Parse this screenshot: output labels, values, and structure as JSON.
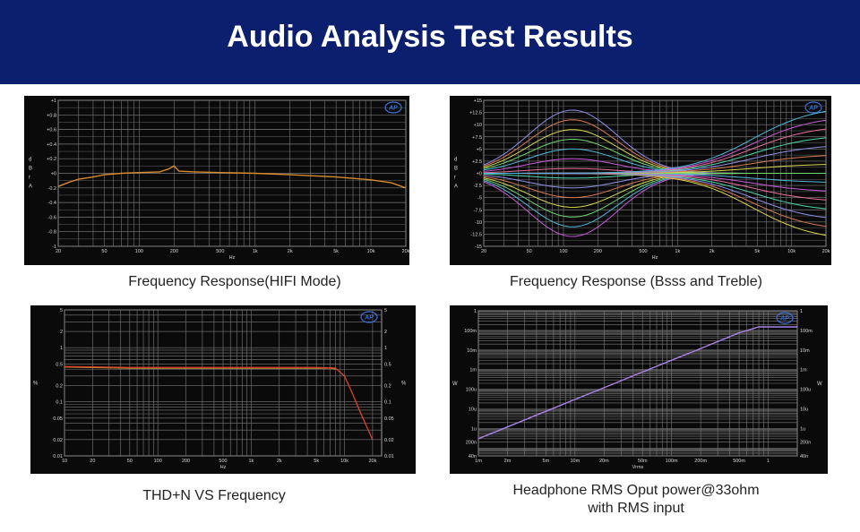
{
  "page": {
    "title": "Audio Analysis Test Results"
  },
  "colors": {
    "banner": "#0c1f6e",
    "panel_bg": "#0a0a0a",
    "grid": "#7a7a7a",
    "axis_text": "#d8d8d8",
    "logo": "#3b6fd8"
  },
  "logo_text": "AP",
  "captions": {
    "c1": "Frequency Response(HIFI Mode)",
    "c2": "Frequency Response (Bsss and Treble)",
    "c3": "THD+N VS Frequency",
    "c4_line1": "Headphone RMS Oput power@33ohm",
    "c4_line2": "with RMS input"
  },
  "chart_data": [
    {
      "id": "freq-hifi",
      "type": "line",
      "x_scale": "log",
      "xlim": [
        20,
        20000
      ],
      "ylim": [
        -1,
        1
      ],
      "xlabel": "Hz",
      "ylabel": "dBrA",
      "y_ticks": [
        "+1",
        "+0.8",
        "+0.6",
        "+0.4",
        "+0.2",
        "+0",
        "-0.2",
        "-0.4",
        "-0.6",
        "-0.8",
        "-1"
      ],
      "x_ticks": [
        "20",
        "50",
        "100",
        "200",
        "500",
        "1k",
        "2k",
        "5k",
        "10k",
        "20k"
      ],
      "series": [
        {
          "color": "#d98a2b",
          "x": [
            20,
            25,
            30,
            40,
            50,
            70,
            100,
            150,
            180,
            200,
            220,
            300,
            500,
            1000,
            2000,
            5000,
            10000,
            15000,
            20000
          ],
          "y": [
            -0.18,
            -0.12,
            -0.08,
            -0.05,
            -0.02,
            0.0,
            0.01,
            0.02,
            0.06,
            0.1,
            0.03,
            0.02,
            0.01,
            0.0,
            -0.02,
            -0.05,
            -0.09,
            -0.13,
            -0.2
          ]
        }
      ]
    },
    {
      "id": "freq-bass-treble",
      "type": "line",
      "x_scale": "log",
      "xlim": [
        20,
        20000
      ],
      "ylim": [
        -15,
        15
      ],
      "xlabel": "Hz",
      "ylabel": "dBrA",
      "y_ticks": [
        "+15",
        "+12.5",
        "+10",
        "+7.5",
        "+5",
        "+2.5",
        "+0",
        "-2.5",
        "-5",
        "-7.5",
        "-10",
        "-12.5",
        "-15"
      ],
      "x_ticks": [
        "20",
        "50",
        "100",
        "200",
        "500",
        "1k",
        "2k",
        "5k",
        "10k",
        "20k"
      ],
      "bass_gains": [
        -13,
        -11,
        -9,
        -7,
        -5,
        -3,
        -1,
        1,
        3,
        5,
        7,
        9,
        11,
        13
      ],
      "treble_gains": [
        -14,
        -12,
        -10,
        -8,
        -6,
        -4,
        -2,
        0,
        2,
        4,
        6,
        8,
        10,
        12,
        14
      ],
      "palette": [
        "#c75ad8",
        "#4fb8d8",
        "#6fd86f",
        "#d8d84f",
        "#d87a4f",
        "#8f8fe8",
        "#4fd8b0",
        "#e86f9c"
      ]
    },
    {
      "id": "thd-freq",
      "type": "line",
      "x_scale": "log",
      "y_scale": "log",
      "xlim": [
        10,
        25000
      ],
      "ylim": [
        0.01,
        5
      ],
      "xlabel": "Hz",
      "ylabel": "%",
      "y_ticks": [
        "5",
        "2",
        "1",
        "0.5",
        "0.2",
        "0.1",
        "0.05",
        "0.02",
        "0.01"
      ],
      "y_tick_values": [
        5,
        2,
        1,
        0.5,
        0.2,
        0.1,
        0.05,
        0.02,
        0.01
      ],
      "x_ticks": [
        "10",
        "20",
        "50",
        "100",
        "200",
        "500",
        "1k",
        "2k",
        "5k",
        "10k",
        "20k"
      ],
      "x_tick_values": [
        10,
        20,
        50,
        100,
        200,
        500,
        1000,
        2000,
        5000,
        10000,
        20000
      ],
      "series": [
        {
          "color": "#c8a640",
          "x": [
            10,
            20,
            50,
            100,
            200,
            500,
            1000,
            2000,
            5000,
            7000,
            8000
          ],
          "y": [
            0.44,
            0.43,
            0.42,
            0.42,
            0.42,
            0.42,
            0.42,
            0.42,
            0.42,
            0.42,
            0.4
          ]
        },
        {
          "color": "#d0402a",
          "x": [
            10,
            20,
            50,
            100,
            200,
            500,
            1000,
            2000,
            5000,
            8000,
            10000,
            12000,
            15000,
            20000
          ],
          "y": [
            0.45,
            0.44,
            0.43,
            0.43,
            0.43,
            0.43,
            0.43,
            0.43,
            0.43,
            0.42,
            0.3,
            0.15,
            0.06,
            0.02
          ]
        }
      ]
    },
    {
      "id": "power-vrms",
      "type": "line",
      "x_scale": "log",
      "y_scale": "log",
      "xlim": [
        0.001,
        2
      ],
      "ylim": [
        4e-08,
        1
      ],
      "xlabel": "Vrms",
      "ylabel": "W",
      "y_ticks": [
        "1",
        "100m",
        "10m",
        "1m",
        "100u",
        "10u",
        "1u",
        "200n",
        "40n"
      ],
      "y_tick_values": [
        1,
        0.1,
        0.01,
        0.001,
        0.0001,
        1e-05,
        1e-06,
        2e-07,
        4e-08
      ],
      "x_ticks": [
        "1m",
        "2m",
        "5m",
        "10m",
        "20m",
        "50m",
        "100m",
        "200m",
        "500m",
        "1"
      ],
      "x_tick_values": [
        0.001,
        0.002,
        0.005,
        0.01,
        0.02,
        0.05,
        0.1,
        0.2,
        0.5,
        1
      ],
      "series": [
        {
          "color": "#a884e8",
          "x": [
            0.001,
            0.002,
            0.005,
            0.01,
            0.02,
            0.05,
            0.1,
            0.2,
            0.5,
            0.8,
            1,
            2
          ],
          "y": [
            3e-07,
            1.2e-06,
            7.5e-06,
            3e-05,
            0.00012,
            0.00075,
            0.003,
            0.012,
            0.075,
            0.15,
            0.15,
            0.15
          ]
        }
      ]
    }
  ]
}
